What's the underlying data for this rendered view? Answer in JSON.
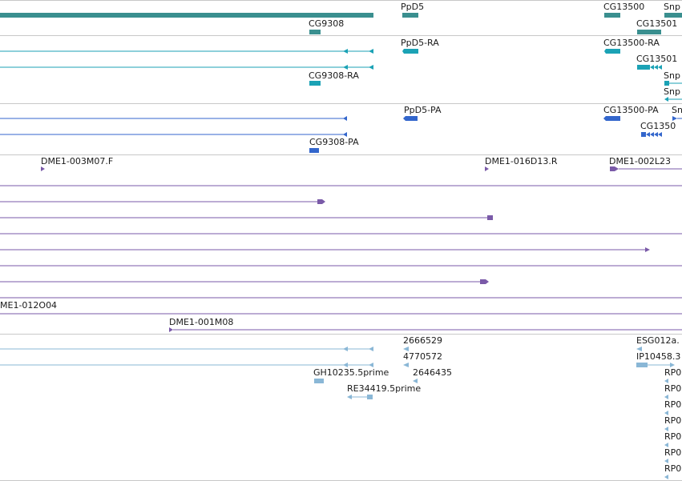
{
  "colors": {
    "gene": "#3a8f8f",
    "mrna": "#1ba2b5",
    "cds": "#3366cc",
    "clone": "#7a5aa8",
    "est": "#8ab7d6",
    "border": "#c8c8c8"
  },
  "tracks": [
    {
      "name": "gene",
      "labels": [
        "PpD5",
        "CG13500",
        "Snp",
        "CG9308",
        "CG13501"
      ]
    },
    {
      "name": "mrna",
      "labels": [
        "PpD5-RA",
        "CG13500-RA",
        "CG13501",
        "Snp",
        "Snp",
        "CG9308-RA"
      ]
    },
    {
      "name": "cds",
      "labels": [
        "PpD5-PA",
        "CG13500-PA",
        "Sn",
        "CG1350",
        "CG9308-PA"
      ]
    },
    {
      "name": "clone",
      "labels": [
        "DME1-003M07.F",
        "DME1-016D13.R",
        "DME1-002L23",
        "ME1-012O04",
        "DME1-001M08"
      ]
    },
    {
      "name": "est",
      "labels": [
        "2666529",
        "ESG012a.",
        "4770572",
        "IP10458.3",
        "GH10235.5prime",
        "2646435",
        "RP0",
        "RE34419.5prime",
        "RP0",
        "RP0",
        "RP0",
        "RP0",
        "RP0",
        "RP0"
      ]
    }
  ]
}
